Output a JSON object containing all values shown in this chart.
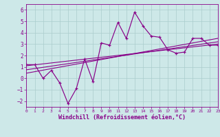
{
  "xlabel": "Windchill (Refroidissement éolien,°C)",
  "xlim": [
    0,
    23
  ],
  "ylim": [
    -2.5,
    6.5
  ],
  "yticks": [
    -2,
    -1,
    0,
    1,
    2,
    3,
    4,
    5,
    6
  ],
  "xticks": [
    0,
    1,
    2,
    3,
    4,
    5,
    6,
    7,
    8,
    9,
    10,
    11,
    12,
    13,
    14,
    15,
    16,
    17,
    18,
    19,
    20,
    21,
    22,
    23
  ],
  "bg_color": "#cde8e8",
  "line_color": "#880088",
  "grid_color": "#aacccc",
  "main_line_x": [
    0,
    1,
    2,
    3,
    4,
    5,
    6,
    7,
    8,
    9,
    10,
    11,
    12,
    13,
    14,
    15,
    16,
    17,
    18,
    19,
    20,
    21,
    22,
    23
  ],
  "main_line_y": [
    1.2,
    1.2,
    0.0,
    0.7,
    -0.4,
    -2.2,
    -0.9,
    1.7,
    -0.3,
    3.1,
    2.9,
    4.9,
    3.5,
    5.8,
    4.6,
    3.7,
    3.6,
    2.5,
    2.2,
    2.3,
    3.5,
    3.5,
    2.9,
    2.9
  ],
  "reg_line1_x": [
    0,
    23
  ],
  "reg_line1_y": [
    1.1,
    3.0
  ],
  "reg_line2_x": [
    0,
    23
  ],
  "reg_line2_y": [
    0.75,
    3.2
  ],
  "reg_line3_x": [
    0,
    23
  ],
  "reg_line3_y": [
    0.45,
    3.5
  ]
}
